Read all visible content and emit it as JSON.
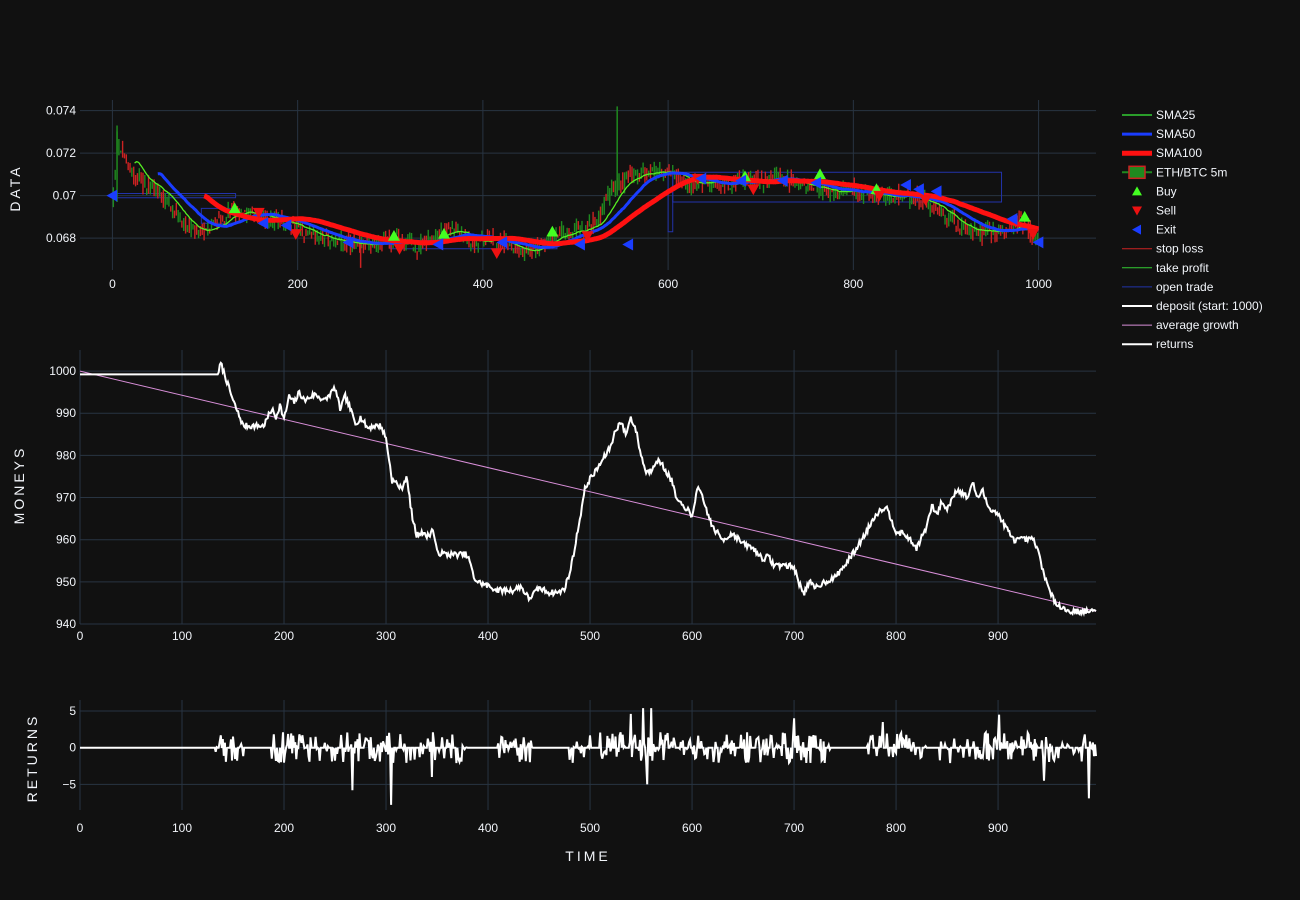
{
  "chart_data": [
    {
      "type": "line",
      "panel": "data",
      "ylabel": "DATA",
      "xlim": [
        -35,
        1062
      ],
      "ylim": [
        0.0665,
        0.0745
      ],
      "xticks": [
        0,
        200,
        400,
        600,
        800,
        1000
      ],
      "yticks": [
        0.068,
        0.07,
        0.072,
        0.074
      ],
      "ytick_labels": [
        "0.068",
        "0.07",
        "0.072",
        "0.074"
      ],
      "price_anchors": {
        "x": [
          0,
          5,
          10,
          20,
          35,
          50,
          65,
          80,
          95,
          110,
          130,
          150,
          170,
          190,
          210,
          230,
          250,
          270,
          290,
          310,
          330,
          350,
          370,
          390,
          410,
          430,
          450,
          470,
          490,
          510,
          525,
          535,
          545,
          560,
          580,
          600,
          620,
          640,
          660,
          680,
          700,
          720,
          740,
          760,
          780,
          800,
          820,
          840,
          860,
          880,
          900,
          920,
          940,
          960,
          980,
          1000
        ],
        "y": [
          0.0699,
          0.0725,
          0.0722,
          0.0712,
          0.0705,
          0.0702,
          0.0694,
          0.0685,
          0.0682,
          0.0687,
          0.0693,
          0.0691,
          0.0689,
          0.0688,
          0.0682,
          0.0679,
          0.0678,
          0.0676,
          0.0677,
          0.068,
          0.0676,
          0.0682,
          0.0683,
          0.0677,
          0.068,
          0.0677,
          0.0673,
          0.0679,
          0.0683,
          0.0684,
          0.0689,
          0.07,
          0.0705,
          0.0709,
          0.071,
          0.0712,
          0.0705,
          0.0706,
          0.0705,
          0.0707,
          0.0707,
          0.0709,
          0.0705,
          0.0704,
          0.0701,
          0.0703,
          0.07,
          0.0699,
          0.07,
          0.0697,
          0.069,
          0.0684,
          0.0682,
          0.0684,
          0.0687,
          0.068
        ]
      },
      "wicks": [
        {
          "x": 5,
          "low": 0.0697,
          "high": 0.0733
        },
        {
          "x": 268,
          "low": 0.0666,
          "high": 0.0679
        },
        {
          "x": 545,
          "low": 0.07,
          "high": 0.0742
        }
      ],
      "rects": [
        {
          "x0": 0,
          "x1": 133,
          "y0": 0.0699,
          "y1": 0.0701
        },
        {
          "x0": 96,
          "x1": 133,
          "y0": 0.0687,
          "y1": 0.0694
        },
        {
          "x0": 600,
          "x1": 605,
          "y0": 0.0683,
          "y1": 0.0711
        },
        {
          "x0": 605,
          "x1": 960,
          "y0": 0.0697,
          "y1": 0.0711
        },
        {
          "x0": 300,
          "x1": 480,
          "y0": 0.0675,
          "y1": 0.0679
        }
      ],
      "buy": {
        "x": [
          132,
          304,
          358,
          475,
          683,
          764,
          825,
          985
        ],
        "y": [
          0.0694,
          0.0681,
          0.0682,
          0.0683,
          0.0709,
          0.071,
          0.0703,
          0.069
        ]
      },
      "sell": {
        "x": [
          158,
          198,
          310,
          415,
          513,
          632,
          692,
          828,
          878,
          994
        ],
        "y": [
          0.0692,
          0.0682,
          0.0675,
          0.0673,
          0.0681,
          0.0708,
          0.0703,
          0.07,
          0.0698,
          0.0682
        ]
      },
      "exit": {
        "x": [
          0,
          163,
          188,
          255,
          352,
          421,
          505,
          557,
          636,
          679,
          724,
          760,
          857,
          871,
          890,
          972,
          1000
        ],
        "y": [
          0.07,
          0.0687,
          0.0686,
          0.0678,
          0.0677,
          0.0678,
          0.0677,
          0.0677,
          0.0708,
          0.0707,
          0.0707,
          0.0706,
          0.0705,
          0.0703,
          0.0702,
          0.0689,
          0.0678
        ]
      },
      "legend": [
        {
          "label": "SMA25",
          "color": "#33cc33",
          "kind": "line",
          "width": 1.5
        },
        {
          "label": "SMA50",
          "color": "#1a3dff",
          "kind": "line",
          "width": 3
        },
        {
          "label": "SMA100",
          "color": "#ff1111",
          "kind": "line",
          "width": 5
        },
        {
          "label": "ETH/BTC 5m",
          "color": "#1f8a1f",
          "kind": "candle"
        },
        {
          "label": "Buy",
          "color": "#44ff22",
          "kind": "triangle-up"
        },
        {
          "label": "Sell",
          "color": "#ee1111",
          "kind": "triangle-down"
        },
        {
          "label": "Exit",
          "color": "#1a3dff",
          "kind": "triangle-left"
        },
        {
          "label": "stop loss",
          "color": "#cc2222",
          "kind": "thin"
        },
        {
          "label": "take profit",
          "color": "#33cc33",
          "kind": "thin"
        },
        {
          "label": "open trade",
          "color": "#2233aa",
          "kind": "thin"
        },
        {
          "label": "deposit (start: 1000)",
          "color": "#ffffff",
          "kind": "line",
          "width": 2
        },
        {
          "label": "average growth",
          "color": "#d98fd9",
          "kind": "thin"
        },
        {
          "label": "returns",
          "color": "#ffffff",
          "kind": "line",
          "width": 2
        }
      ]
    },
    {
      "type": "line",
      "panel": "moneys",
      "ylabel": "MONEYS",
      "xlim": [
        0,
        996
      ],
      "ylim": [
        940,
        1005
      ],
      "xticks": [
        0,
        100,
        200,
        300,
        400,
        500,
        600,
        700,
        800,
        900
      ],
      "yticks": [
        940,
        950,
        960,
        970,
        980,
        990,
        1000
      ],
      "deposit": {
        "x": [
          0,
          135,
          138,
          142,
          146,
          150,
          155,
          160,
          170,
          180,
          188,
          192,
          196,
          200,
          205,
          210,
          215,
          220,
          230,
          240,
          250,
          255,
          260,
          265,
          270,
          275,
          282,
          288,
          295,
          300,
          303,
          306,
          310,
          315,
          320,
          326,
          330,
          335,
          338,
          342,
          346,
          350,
          360,
          370,
          378,
          382,
          386,
          390,
          400,
          410,
          415,
          420,
          425,
          432,
          440,
          450,
          460,
          470,
          475,
          480,
          485,
          490,
          495,
          500,
          505,
          510,
          515,
          520,
          525,
          530,
          535,
          540,
          545,
          550,
          555,
          560,
          565,
          570,
          575,
          580,
          585,
          590,
          595,
          600,
          605,
          610,
          620,
          630,
          640,
          650,
          655,
          660,
          665,
          670,
          675,
          680,
          690,
          700,
          705,
          710,
          715,
          720,
          730,
          740,
          745,
          750,
          760,
          770,
          780,
          790,
          800,
          810,
          820,
          825,
          830,
          835,
          840,
          845,
          850,
          855,
          860,
          870,
          875,
          880,
          885,
          890,
          900,
          910,
          915,
          920,
          925,
          930,
          935,
          940,
          945,
          950,
          955,
          960,
          965,
          970,
          975,
          980,
          985,
          990,
          996
        ],
        "y": [
          999.2,
          999.2,
          1001.8,
          999.0,
          996.0,
          993.0,
          990.0,
          987.0,
          987.0,
          987.0,
          991.0,
          989.0,
          992.0,
          988.5,
          994.0,
          992.5,
          995.0,
          993.0,
          994.5,
          993.0,
          996.0,
          991.0,
          994.0,
          991.0,
          987.5,
          989.0,
          986.5,
          987.0,
          987.0,
          984.0,
          979.0,
          974.0,
          973.5,
          972.0,
          975.0,
          965.0,
          961.0,
          962.0,
          961.0,
          961.0,
          962.5,
          957.0,
          956.5,
          956.5,
          956.5,
          955.0,
          951.0,
          950.0,
          949.0,
          948.0,
          948.0,
          948.0,
          948.0,
          949.0,
          946.0,
          948.5,
          947.5,
          947.5,
          948.5,
          952.0,
          958.0,
          965.0,
          972.0,
          974.5,
          976.0,
          978.0,
          980.0,
          982.0,
          986.0,
          988.0,
          985.0,
          989.0,
          986.0,
          980.0,
          976.0,
          976.5,
          979.0,
          978.0,
          976.0,
          974.0,
          969.5,
          968.0,
          967.5,
          965.0,
          972.5,
          970.0,
          963.0,
          960.0,
          961.5,
          959.0,
          958.5,
          958.0,
          956.5,
          955.5,
          956.0,
          954.0,
          954.0,
          953.5,
          949.5,
          947.5,
          950.0,
          948.5,
          950.0,
          951.0,
          952.5,
          954.0,
          957.5,
          961.5,
          966.0,
          968.0,
          962.0,
          961.0,
          958.0,
          960.5,
          963.0,
          968.0,
          966.0,
          969.0,
          967.0,
          970.0,
          972.0,
          970.0,
          973.5,
          970.0,
          971.5,
          968.0,
          966.0,
          962.0,
          960.0,
          960.0,
          960.0,
          960.0,
          960.0,
          956.5,
          952.0,
          948.0,
          945.5,
          944.5,
          943.5,
          943.0,
          943.0,
          943.0,
          943.0,
          943.0,
          943.0
        ]
      },
      "average_growth": {
        "x": [
          0,
          996
        ],
        "y": [
          1000,
          943
        ]
      }
    },
    {
      "type": "line",
      "panel": "returns",
      "ylabel": "RETURNS",
      "xlabel": "TIME",
      "xlim": [
        0,
        996
      ],
      "ylim": [
        -8.5,
        6.5
      ],
      "xticks": [
        0,
        100,
        200,
        300,
        400,
        500,
        600,
        700,
        800,
        900
      ],
      "yticks": [
        -5,
        0,
        5
      ],
      "ytick_labels": [
        "−5",
        "0",
        "5"
      ],
      "active_ranges": [
        [
          133,
          160
        ],
        [
          188,
          380
        ],
        [
          410,
          445
        ],
        [
          480,
          500
        ],
        [
          510,
          740
        ],
        [
          770,
          830
        ],
        [
          840,
          996
        ]
      ],
      "spikes": {
        "x": [
          267,
          305,
          345,
          540,
          552,
          556,
          560,
          700,
          787,
          901,
          945,
          989
        ],
        "y": [
          -5.8,
          -7.8,
          -4.0,
          4.6,
          5.4,
          -5.0,
          5.4,
          4.0,
          3.5,
          4.5,
          -4.5,
          -6.9
        ]
      }
    }
  ]
}
